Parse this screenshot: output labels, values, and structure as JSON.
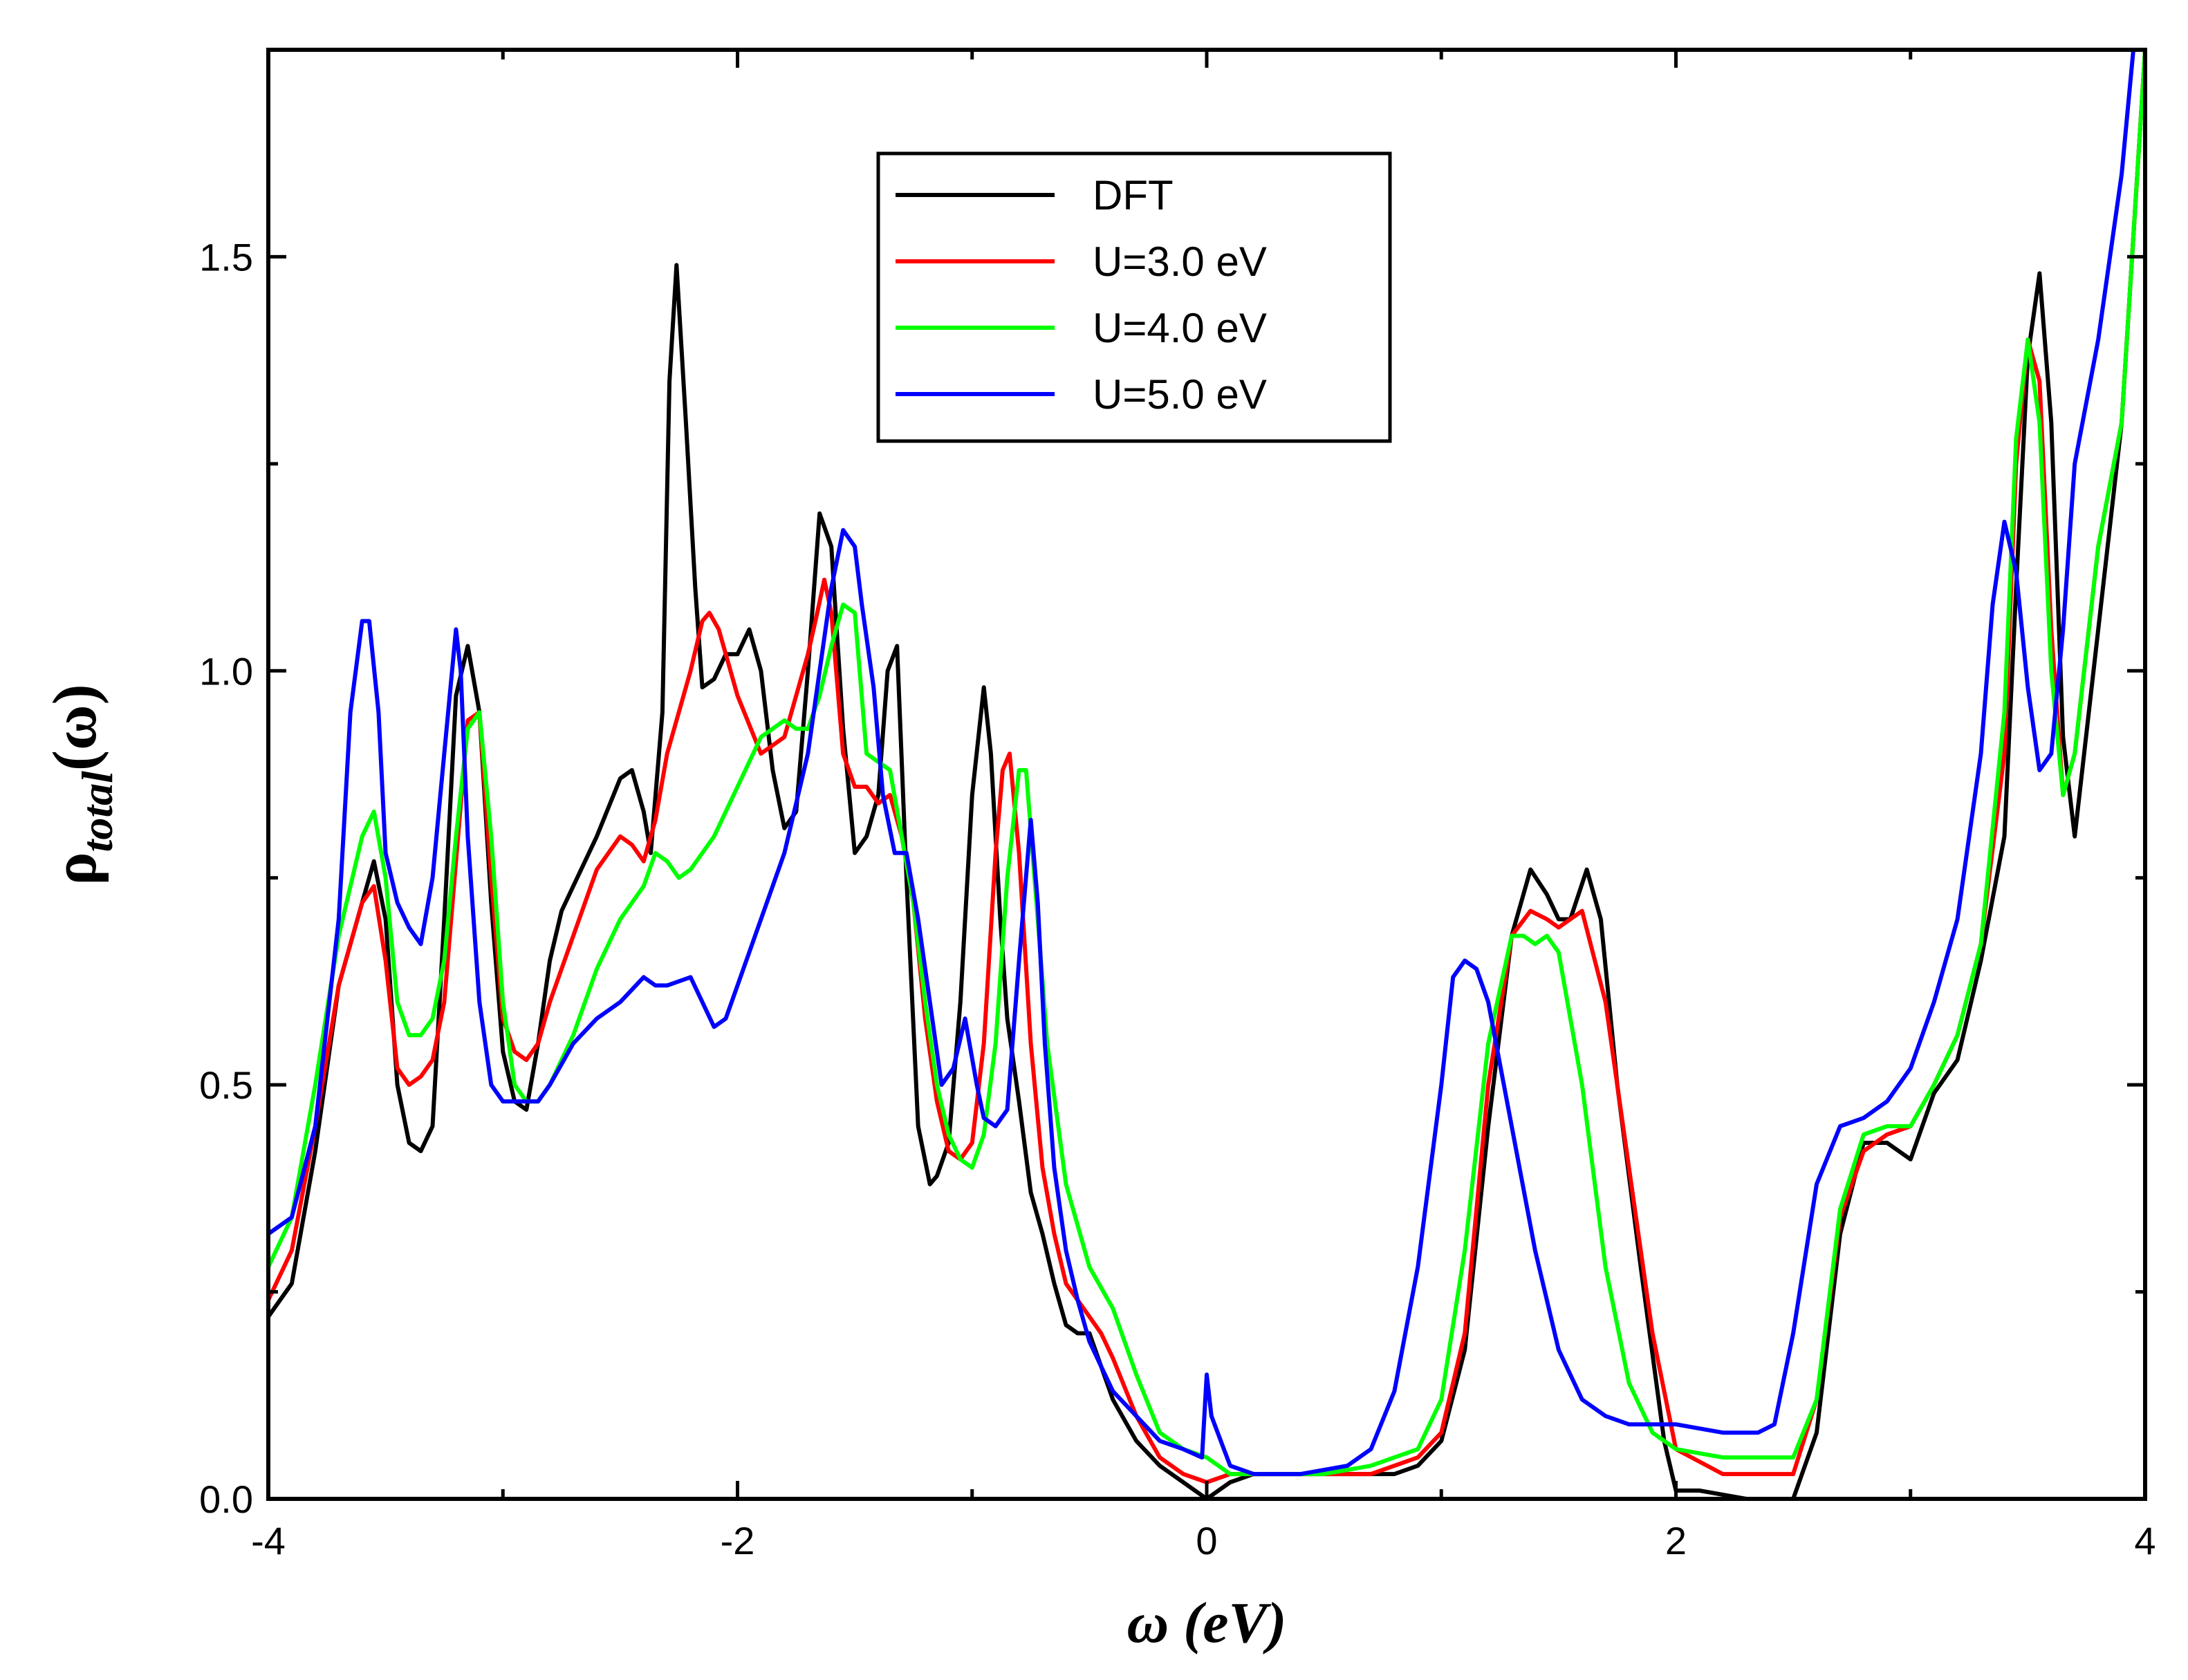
{
  "chart_data": {
    "type": "line",
    "xlabel": "ω (eV)",
    "ylabel": {
      "main": "ρ",
      "sub": "total",
      "tail": "(ω)"
    },
    "xlim": [
      -4,
      4
    ],
    "ylim": [
      0,
      1.75
    ],
    "xticks": [
      -4,
      -2,
      0,
      2,
      4
    ],
    "xtick_labels": [
      "-4",
      "-2",
      "0",
      "2",
      "4"
    ],
    "yticks": [
      0,
      0.5,
      1.0,
      1.5
    ],
    "ytick_labels": [
      "0.0",
      "0.5",
      "1.0",
      "1.5"
    ],
    "legend_position": "top-center",
    "series": [
      {
        "name": "DFT",
        "color": "#000000",
        "x": [
          -4.0,
          -3.9,
          -3.8,
          -3.7,
          -3.6,
          -3.55,
          -3.5,
          -3.45,
          -3.4,
          -3.35,
          -3.3,
          -3.25,
          -3.2,
          -3.15,
          -3.1,
          -3.05,
          -3.0,
          -2.95,
          -2.9,
          -2.85,
          -2.8,
          -2.75,
          -2.7,
          -2.6,
          -2.5,
          -2.45,
          -2.4,
          -2.37,
          -2.32,
          -2.29,
          -2.26,
          -2.22,
          -2.18,
          -2.15,
          -2.1,
          -2.05,
          -2.0,
          -1.95,
          -1.9,
          -1.85,
          -1.8,
          -1.75,
          -1.7,
          -1.65,
          -1.6,
          -1.55,
          -1.5,
          -1.45,
          -1.4,
          -1.36,
          -1.32,
          -1.28,
          -1.23,
          -1.18,
          -1.15,
          -1.1,
          -1.05,
          -1.0,
          -0.95,
          -0.92,
          -0.88,
          -0.85,
          -0.8,
          -0.75,
          -0.7,
          -0.65,
          -0.6,
          -0.55,
          -0.5,
          -0.45,
          -0.4,
          -0.3,
          -0.2,
          -0.1,
          -0.05,
          0.0,
          0.1,
          0.2,
          0.4,
          0.6,
          0.8,
          0.9,
          1.0,
          1.1,
          1.2,
          1.3,
          1.38,
          1.45,
          1.5,
          1.55,
          1.62,
          1.68,
          1.75,
          1.85,
          1.95,
          2.0,
          2.1,
          2.3,
          2.5,
          2.6,
          2.7,
          2.8,
          2.9,
          3.0,
          3.1,
          3.2,
          3.3,
          3.4,
          3.45,
          3.5,
          3.55,
          3.6,
          3.65,
          3.7,
          3.8,
          3.9,
          4.0
        ],
        "values": [
          0.22,
          0.26,
          0.42,
          0.62,
          0.72,
          0.77,
          0.7,
          0.5,
          0.43,
          0.42,
          0.45,
          0.7,
          0.97,
          1.03,
          0.95,
          0.72,
          0.54,
          0.48,
          0.47,
          0.55,
          0.65,
          0.71,
          0.74,
          0.8,
          0.87,
          0.88,
          0.83,
          0.78,
          0.95,
          1.35,
          1.49,
          1.3,
          1.1,
          0.98,
          0.99,
          1.02,
          1.02,
          1.05,
          1.0,
          0.88,
          0.81,
          0.83,
          1.0,
          1.19,
          1.15,
          0.93,
          0.78,
          0.8,
          0.85,
          1.0,
          1.03,
          0.75,
          0.45,
          0.38,
          0.39,
          0.43,
          0.6,
          0.85,
          0.98,
          0.9,
          0.7,
          0.58,
          0.48,
          0.37,
          0.32,
          0.26,
          0.21,
          0.2,
          0.2,
          0.16,
          0.12,
          0.07,
          0.04,
          0.02,
          0.01,
          0.0,
          0.02,
          0.03,
          0.03,
          0.03,
          0.03,
          0.04,
          0.07,
          0.18,
          0.45,
          0.68,
          0.76,
          0.73,
          0.7,
          0.7,
          0.76,
          0.7,
          0.5,
          0.28,
          0.07,
          0.01,
          0.01,
          0.0,
          0.0,
          0.08,
          0.32,
          0.43,
          0.43,
          0.41,
          0.49,
          0.53,
          0.65,
          0.8,
          1.1,
          1.38,
          1.48,
          1.3,
          0.92,
          0.8,
          1.05,
          1.3,
          1.75
        ]
      },
      {
        "name": "U=3.0 eV",
        "color": "#ff0000",
        "x": [
          -4.0,
          -3.9,
          -3.8,
          -3.7,
          -3.6,
          -3.55,
          -3.5,
          -3.45,
          -3.4,
          -3.35,
          -3.3,
          -3.25,
          -3.2,
          -3.15,
          -3.1,
          -3.05,
          -3.0,
          -2.95,
          -2.9,
          -2.85,
          -2.8,
          -2.7,
          -2.6,
          -2.5,
          -2.45,
          -2.4,
          -2.35,
          -2.3,
          -2.2,
          -2.15,
          -2.12,
          -2.08,
          -2.0,
          -1.9,
          -1.8,
          -1.7,
          -1.66,
          -1.63,
          -1.6,
          -1.55,
          -1.5,
          -1.45,
          -1.4,
          -1.35,
          -1.3,
          -1.25,
          -1.2,
          -1.15,
          -1.1,
          -1.05,
          -1.0,
          -0.95,
          -0.9,
          -0.87,
          -0.84,
          -0.8,
          -0.75,
          -0.7,
          -0.65,
          -0.6,
          -0.5,
          -0.45,
          -0.4,
          -0.3,
          -0.2,
          -0.1,
          0.0,
          0.1,
          0.3,
          0.5,
          0.7,
          0.9,
          1.0,
          1.1,
          1.2,
          1.3,
          1.38,
          1.45,
          1.5,
          1.55,
          1.6,
          1.7,
          1.8,
          1.9,
          2.0,
          2.2,
          2.4,
          2.5,
          2.6,
          2.7,
          2.8,
          2.9,
          3.0,
          3.1,
          3.2,
          3.3,
          3.4,
          3.45,
          3.5,
          3.55,
          3.6,
          3.65,
          3.7,
          3.8,
          3.9,
          4.0
        ],
        "values": [
          0.24,
          0.3,
          0.45,
          0.62,
          0.72,
          0.74,
          0.65,
          0.52,
          0.5,
          0.51,
          0.53,
          0.6,
          0.77,
          0.94,
          0.95,
          0.75,
          0.58,
          0.54,
          0.53,
          0.55,
          0.6,
          0.68,
          0.76,
          0.8,
          0.79,
          0.77,
          0.82,
          0.9,
          1.0,
          1.06,
          1.07,
          1.05,
          0.97,
          0.9,
          0.92,
          1.02,
          1.07,
          1.11,
          1.07,
          0.9,
          0.86,
          0.86,
          0.84,
          0.85,
          0.8,
          0.72,
          0.58,
          0.48,
          0.42,
          0.41,
          0.43,
          0.55,
          0.78,
          0.88,
          0.9,
          0.78,
          0.55,
          0.4,
          0.32,
          0.26,
          0.22,
          0.2,
          0.17,
          0.1,
          0.05,
          0.03,
          0.02,
          0.03,
          0.03,
          0.03,
          0.03,
          0.05,
          0.08,
          0.2,
          0.5,
          0.68,
          0.71,
          0.7,
          0.69,
          0.7,
          0.71,
          0.6,
          0.4,
          0.2,
          0.06,
          0.03,
          0.03,
          0.03,
          0.12,
          0.34,
          0.42,
          0.44,
          0.45,
          0.5,
          0.56,
          0.67,
          0.9,
          1.25,
          1.4,
          1.35,
          1.05,
          0.85,
          0.9,
          1.15,
          1.3,
          1.75
        ]
      },
      {
        "name": "U=4.0 eV",
        "color": "#00ff00",
        "x": [
          -4.0,
          -3.9,
          -3.8,
          -3.7,
          -3.6,
          -3.55,
          -3.5,
          -3.45,
          -3.4,
          -3.35,
          -3.3,
          -3.25,
          -3.2,
          -3.15,
          -3.1,
          -3.05,
          -3.0,
          -2.95,
          -2.9,
          -2.85,
          -2.8,
          -2.7,
          -2.6,
          -2.5,
          -2.4,
          -2.35,
          -2.3,
          -2.25,
          -2.2,
          -2.1,
          -2.0,
          -1.9,
          -1.8,
          -1.75,
          -1.7,
          -1.65,
          -1.6,
          -1.55,
          -1.5,
          -1.45,
          -1.4,
          -1.35,
          -1.3,
          -1.25,
          -1.2,
          -1.15,
          -1.1,
          -1.05,
          -1.0,
          -0.95,
          -0.9,
          -0.85,
          -0.8,
          -0.77,
          -0.72,
          -0.68,
          -0.6,
          -0.5,
          -0.4,
          -0.3,
          -0.2,
          -0.1,
          0.0,
          0.1,
          0.3,
          0.5,
          0.7,
          0.9,
          1.0,
          1.1,
          1.2,
          1.3,
          1.35,
          1.4,
          1.45,
          1.5,
          1.6,
          1.7,
          1.8,
          1.9,
          2.0,
          2.2,
          2.4,
          2.5,
          2.6,
          2.7,
          2.8,
          2.9,
          3.0,
          3.1,
          3.2,
          3.3,
          3.4,
          3.45,
          3.5,
          3.55,
          3.6,
          3.65,
          3.7,
          3.8,
          3.9,
          4.0
        ],
        "values": [
          0.28,
          0.34,
          0.5,
          0.68,
          0.8,
          0.83,
          0.75,
          0.6,
          0.56,
          0.56,
          0.58,
          0.65,
          0.8,
          0.93,
          0.95,
          0.8,
          0.6,
          0.5,
          0.48,
          0.48,
          0.5,
          0.56,
          0.64,
          0.7,
          0.74,
          0.78,
          0.77,
          0.75,
          0.76,
          0.8,
          0.86,
          0.92,
          0.94,
          0.93,
          0.93,
          0.97,
          1.03,
          1.08,
          1.07,
          0.9,
          0.89,
          0.88,
          0.8,
          0.72,
          0.6,
          0.5,
          0.44,
          0.41,
          0.4,
          0.44,
          0.55,
          0.75,
          0.88,
          0.88,
          0.7,
          0.55,
          0.38,
          0.28,
          0.23,
          0.15,
          0.08,
          0.06,
          0.05,
          0.03,
          0.03,
          0.03,
          0.04,
          0.06,
          0.12,
          0.3,
          0.55,
          0.68,
          0.68,
          0.67,
          0.68,
          0.66,
          0.5,
          0.28,
          0.14,
          0.08,
          0.06,
          0.05,
          0.05,
          0.05,
          0.12,
          0.35,
          0.44,
          0.45,
          0.45,
          0.5,
          0.56,
          0.67,
          0.95,
          1.28,
          1.4,
          1.3,
          1.0,
          0.85,
          0.9,
          1.15,
          1.3,
          1.75
        ]
      },
      {
        "name": "U=5.0 eV",
        "color": "#0000ff",
        "x": [
          -4.0,
          -3.9,
          -3.8,
          -3.7,
          -3.65,
          -3.6,
          -3.57,
          -3.53,
          -3.5,
          -3.45,
          -3.4,
          -3.35,
          -3.3,
          -3.25,
          -3.2,
          -3.18,
          -3.15,
          -3.1,
          -3.05,
          -3.0,
          -2.95,
          -2.9,
          -2.85,
          -2.8,
          -2.7,
          -2.6,
          -2.5,
          -2.4,
          -2.35,
          -2.3,
          -2.2,
          -2.15,
          -2.1,
          -2.05,
          -2.0,
          -1.9,
          -1.8,
          -1.7,
          -1.6,
          -1.55,
          -1.5,
          -1.47,
          -1.42,
          -1.38,
          -1.33,
          -1.28,
          -1.23,
          -1.18,
          -1.13,
          -1.08,
          -1.03,
          -0.98,
          -0.95,
          -0.9,
          -0.85,
          -0.8,
          -0.75,
          -0.72,
          -0.69,
          -0.65,
          -0.6,
          -0.55,
          -0.5,
          -0.45,
          -0.4,
          -0.3,
          -0.2,
          -0.1,
          -0.02,
          0.0,
          0.02,
          0.1,
          0.2,
          0.4,
          0.6,
          0.7,
          0.8,
          0.9,
          1.0,
          1.05,
          1.1,
          1.15,
          1.2,
          1.3,
          1.4,
          1.5,
          1.6,
          1.7,
          1.8,
          1.9,
          2.0,
          2.2,
          2.35,
          2.42,
          2.5,
          2.6,
          2.7,
          2.8,
          2.9,
          3.0,
          3.1,
          3.2,
          3.3,
          3.35,
          3.4,
          3.45,
          3.5,
          3.55,
          3.6,
          3.65,
          3.7,
          3.8,
          3.9,
          3.95
        ],
        "values": [
          0.32,
          0.34,
          0.45,
          0.7,
          0.95,
          1.06,
          1.06,
          0.95,
          0.78,
          0.72,
          0.69,
          0.67,
          0.75,
          0.9,
          1.05,
          1.0,
          0.8,
          0.6,
          0.5,
          0.48,
          0.48,
          0.48,
          0.48,
          0.5,
          0.55,
          0.58,
          0.6,
          0.63,
          0.62,
          0.62,
          0.63,
          0.6,
          0.57,
          0.58,
          0.62,
          0.7,
          0.78,
          0.9,
          1.1,
          1.17,
          1.15,
          1.08,
          0.98,
          0.85,
          0.78,
          0.78,
          0.7,
          0.6,
          0.5,
          0.52,
          0.58,
          0.5,
          0.46,
          0.45,
          0.47,
          0.65,
          0.82,
          0.72,
          0.55,
          0.4,
          0.3,
          0.24,
          0.19,
          0.16,
          0.13,
          0.1,
          0.07,
          0.06,
          0.05,
          0.15,
          0.1,
          0.04,
          0.03,
          0.03,
          0.04,
          0.06,
          0.13,
          0.28,
          0.5,
          0.63,
          0.65,
          0.64,
          0.6,
          0.45,
          0.3,
          0.18,
          0.12,
          0.1,
          0.09,
          0.09,
          0.09,
          0.08,
          0.08,
          0.09,
          0.2,
          0.38,
          0.45,
          0.46,
          0.48,
          0.52,
          0.6,
          0.7,
          0.9,
          1.08,
          1.18,
          1.12,
          0.98,
          0.88,
          0.9,
          1.05,
          1.25,
          1.4,
          1.6,
          1.75
        ]
      }
    ]
  }
}
